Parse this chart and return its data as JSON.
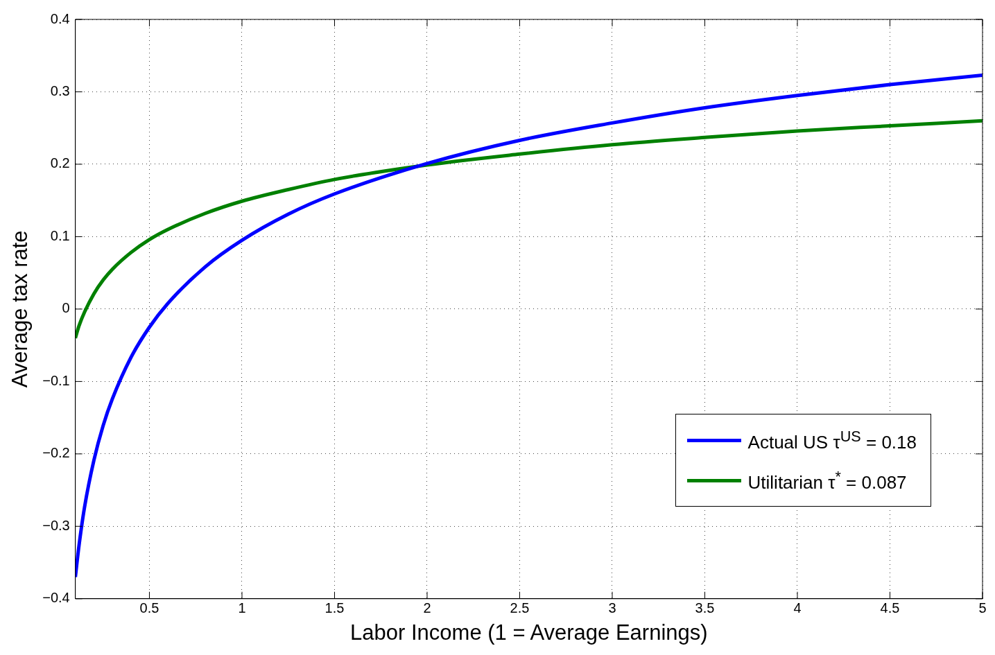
{
  "chart_data": {
    "type": "line",
    "xlabel": "Labor Income (1 = Average Earnings)",
    "ylabel": "Average tax rate",
    "xlim": [
      0.1,
      5
    ],
    "xticks": [
      0.5,
      1,
      1.5,
      2,
      2.5,
      3,
      3.5,
      4,
      4.5,
      5
    ],
    "ylim": [
      -0.4,
      0.4
    ],
    "yticks": [
      {
        "value": -0.4,
        "label": "−0.4"
      },
      {
        "value": -0.3,
        "label": "−0.3"
      },
      {
        "value": -0.2,
        "label": "−0.2"
      },
      {
        "value": -0.1,
        "label": "−0.1"
      },
      0,
      0.1,
      0.2,
      0.3,
      0.4
    ],
    "grid": true,
    "legend": "bottom right",
    "marker": "none",
    "line_style": "solid",
    "x": [
      0.1,
      0.12,
      0.15,
      0.2,
      0.25,
      0.3,
      0.4,
      0.5,
      0.6,
      0.8,
      1,
      1.25,
      1.5,
      2,
      2.5,
      3,
      3.5,
      4,
      4.5,
      5
    ],
    "series": [
      {
        "name": "Actual US τ$^{US}$ = 0.18",
        "color": "#0000ff",
        "values": [
          -0.37,
          -0.326,
          -0.273,
          -0.209,
          -0.161,
          -0.124,
          -0.067,
          -0.025,
          0.008,
          0.058,
          0.095,
          0.131,
          0.159,
          0.201,
          0.233,
          0.257,
          0.278,
          0.295,
          0.31,
          0.323
        ]
      },
      {
        "name": "Utilitarian τ$^{*}$ = 0.087",
        "color": "#008000",
        "values": [
          -0.04,
          -0.023,
          -0.004,
          0.021,
          0.04,
          0.055,
          0.078,
          0.096,
          0.11,
          0.132,
          0.149,
          0.165,
          0.179,
          0.199,
          0.214,
          0.227,
          0.237,
          0.246,
          0.253,
          0.26
        ]
      }
    ]
  }
}
